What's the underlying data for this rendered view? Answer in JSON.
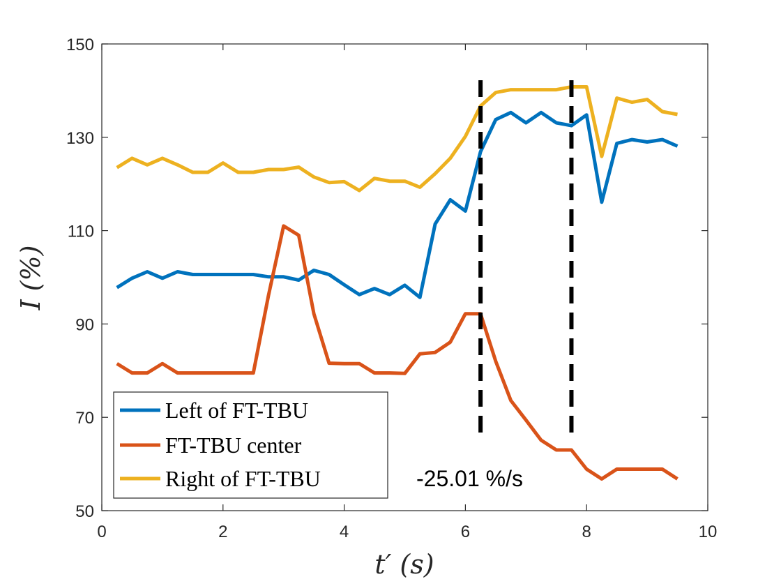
{
  "chart_data": {
    "type": "line",
    "title": "",
    "xlabel": "t′ (s)",
    "ylabel": "I (%)",
    "xlim": [
      0,
      10
    ],
    "ylim": [
      50,
      150
    ],
    "xticks": [
      0,
      2,
      4,
      6,
      8,
      10
    ],
    "yticks": [
      50,
      70,
      90,
      110,
      130,
      150
    ],
    "grid": false,
    "legend_position": "bottom-left",
    "x": [
      0.25,
      0.5,
      0.75,
      1.0,
      1.25,
      1.5,
      1.75,
      2.0,
      2.25,
      2.5,
      2.75,
      3.0,
      3.25,
      3.5,
      3.75,
      4.0,
      4.25,
      4.5,
      4.75,
      5.0,
      5.25,
      5.5,
      5.75,
      6.0,
      6.25,
      6.5,
      6.75,
      7.0,
      7.25,
      7.5,
      7.75,
      8.0,
      8.25,
      8.5,
      8.75,
      9.0,
      9.25,
      9.5
    ],
    "series": [
      {
        "name": "Left of FT-TBU",
        "color": "#0072BD",
        "values": [
          97.8,
          99.8,
          101.2,
          99.8,
          101.2,
          100.6,
          100.6,
          100.6,
          100.6,
          100.6,
          100.1,
          100.1,
          99.4,
          101.5,
          100.6,
          98.4,
          96.3,
          97.6,
          96.3,
          98.3,
          95.7,
          111.4,
          116.6,
          114.2,
          126.9,
          133.8,
          135.3,
          133.1,
          135.3,
          133.1,
          132.5,
          134.8,
          116.1,
          128.7,
          129.5,
          129.0,
          129.5,
          128.1
        ]
      },
      {
        "name": "FT-TBU center",
        "color": "#D95319",
        "values": [
          81.5,
          79.5,
          79.5,
          81.5,
          79.5,
          79.5,
          79.5,
          79.5,
          79.5,
          79.5,
          96.1,
          111.0,
          109.0,
          92.2,
          81.6,
          81.5,
          81.5,
          79.5,
          79.5,
          79.4,
          83.6,
          83.9,
          86.1,
          92.2,
          92.2,
          82.0,
          73.6,
          69.4,
          65.1,
          63.0,
          63.0,
          58.9,
          56.8,
          58.9,
          58.9,
          58.9,
          58.9,
          56.8
        ]
      },
      {
        "name": "Right of FT-TBU",
        "color": "#EDB120",
        "values": [
          123.5,
          125.5,
          124.1,
          125.5,
          124.1,
          122.5,
          122.5,
          124.5,
          122.5,
          122.5,
          123.1,
          123.1,
          123.6,
          121.5,
          120.3,
          120.5,
          118.6,
          121.2,
          120.6,
          120.6,
          119.3,
          122.2,
          125.5,
          130.2,
          136.7,
          139.6,
          140.2,
          140.2,
          140.2,
          140.2,
          140.8,
          140.8,
          125.9,
          138.4,
          137.5,
          138.1,
          135.5,
          134.9
        ]
      }
    ],
    "vlines": [
      6.25,
      7.75
    ],
    "annotation": "-25.01 %/s"
  }
}
